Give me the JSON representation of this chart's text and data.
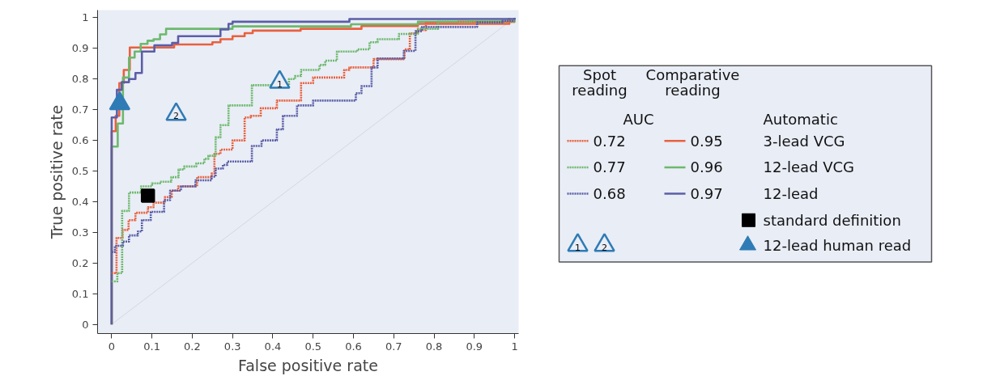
{
  "chart_data": {
    "type": "step",
    "xlabel": "False positive rate",
    "ylabel": "True positive rate",
    "xlim": [
      -0.035,
      1.01
    ],
    "ylim": [
      -0.03,
      1.025
    ],
    "xticks": [
      0,
      0.1,
      0.2,
      0.3,
      0.4,
      0.5,
      0.6,
      0.7,
      0.8,
      0.9,
      1
    ],
    "yticks": [
      0,
      0.1,
      0.2,
      0.3,
      0.4,
      0.5,
      0.6,
      0.7,
      0.8,
      0.9,
      1
    ],
    "grid": false,
    "legend": "right",
    "annotations": [
      "Spot\nreading",
      "Comparative\nreading",
      "AUC",
      "Automatic",
      "3-lead VCG",
      "12-lead VCG",
      "12-lead",
      {
        "text": "1",
        "x": 0.417,
        "y": 0.79
      },
      {
        "text": "2",
        "x": 0.16,
        "y": 0.685
      }
    ],
    "series": [
      {
        "type": "line",
        "color": "#d3d7de",
        "x": [
          0,
          1
        ],
        "values": [
          0,
          1
        ]
      },
      {
        "name": "0.72",
        "color": "#e8613f",
        "line_style": "dotted",
        "x": [
          0,
          0.012,
          0.027,
          0.042,
          0.059,
          0.09,
          0.104,
          0.132,
          0.149,
          0.165,
          0.212,
          0.248,
          0.255,
          0.27,
          0.3,
          0.33,
          0.345,
          0.37,
          0.41,
          0.47,
          0.47,
          0.5,
          0.577,
          0.59,
          0.65,
          0.727,
          0.74,
          0.76,
          0.78,
          0.86,
          1.0
        ],
        "values": [
          0.167,
          0.282,
          0.308,
          0.34,
          0.364,
          0.382,
          0.397,
          0.415,
          0.436,
          0.45,
          0.48,
          0.492,
          0.556,
          0.57,
          0.6,
          0.675,
          0.68,
          0.705,
          0.73,
          0.744,
          0.787,
          0.805,
          0.83,
          0.838,
          0.865,
          0.897,
          0.949,
          0.96,
          0.983,
          0.987,
          0.987
        ]
      },
      {
        "name": "0.77",
        "color": "#6cb96c",
        "line_style": "dotted",
        "x": [
          0,
          0.014,
          0.026,
          0.043,
          0.073,
          0.1,
          0.12,
          0.148,
          0.166,
          0.18,
          0.21,
          0.23,
          0.24,
          0.258,
          0.27,
          0.29,
          0.348,
          0.44,
          0.455,
          0.47,
          0.516,
          0.53,
          0.559,
          0.61,
          0.64,
          0.66,
          0.713,
          0.76,
          0.81,
          0.89,
          1.0
        ],
        "values": [
          0.14,
          0.167,
          0.37,
          0.43,
          0.45,
          0.46,
          0.465,
          0.48,
          0.505,
          0.515,
          0.525,
          0.54,
          0.55,
          0.61,
          0.65,
          0.714,
          0.78,
          0.8,
          0.81,
          0.83,
          0.846,
          0.86,
          0.89,
          0.897,
          0.92,
          0.93,
          0.947,
          0.964,
          0.987,
          0.99,
          0.99
        ]
      },
      {
        "name": "0.68",
        "color": "#5b5ea6",
        "line_style": "dotted",
        "x": [
          0,
          0.008,
          0.028,
          0.043,
          0.065,
          0.075,
          0.097,
          0.13,
          0.145,
          0.172,
          0.208,
          0.248,
          0.258,
          0.276,
          0.287,
          0.348,
          0.372,
          0.41,
          0.425,
          0.46,
          0.5,
          0.606,
          0.62,
          0.645,
          0.66,
          0.725,
          0.754,
          0.77,
          0.907,
          0.97,
          1.0
        ],
        "values": [
          0.236,
          0.256,
          0.27,
          0.29,
          0.303,
          0.34,
          0.367,
          0.405,
          0.436,
          0.45,
          0.47,
          0.482,
          0.508,
          0.52,
          0.531,
          0.582,
          0.6,
          0.636,
          0.68,
          0.714,
          0.73,
          0.754,
          0.777,
          0.838,
          0.867,
          0.892,
          0.956,
          0.97,
          0.985,
          0.99,
          0.99
        ]
      },
      {
        "name": "0.95",
        "color": "#e8613f",
        "line_style": "solid",
        "x": [
          0,
          0,
          0.01,
          0.019,
          0.03,
          0.045,
          0.155,
          0.25,
          0.27,
          0.3,
          0.33,
          0.35,
          0.469,
          0.62,
          0.76,
          0.987,
          0.987
        ],
        "values": [
          0,
          0.63,
          0.68,
          0.787,
          0.83,
          0.903,
          0.913,
          0.92,
          0.93,
          0.94,
          0.95,
          0.958,
          0.964,
          0.973,
          0.98,
          0.98,
          1
        ]
      },
      {
        "name": "0.96",
        "color": "#6cb96c",
        "line_style": "solid",
        "x": [
          0,
          0,
          0.015,
          0.028,
          0.043,
          0.057,
          0.072,
          0.089,
          0.104,
          0.12,
          0.135,
          0.3,
          0.594,
          0.76,
          1.0,
          1.0
        ],
        "values": [
          0,
          0.58,
          0.655,
          0.805,
          0.87,
          0.89,
          0.915,
          0.925,
          0.93,
          0.946,
          0.964,
          0.972,
          0.979,
          0.987,
          0.987,
          1
        ]
      },
      {
        "name": "0.97",
        "color": "#5b5ea6",
        "line_style": "solid",
        "x": [
          0,
          0,
          0.013,
          0.025,
          0.043,
          0.059,
          0.075,
          0.106,
          0.15,
          0.165,
          0.27,
          0.29,
          0.3,
          0.59,
          1.0
        ],
        "values": [
          0,
          0.675,
          0.765,
          0.79,
          0.8,
          0.82,
          0.89,
          0.91,
          0.918,
          0.94,
          0.962,
          0.98,
          0.987,
          0.996,
          1
        ]
      },
      {
        "name": "standard definition",
        "type": "scatter",
        "marker": "square",
        "color": "#000000",
        "x": [
          0.09
        ],
        "values": [
          0.42
        ]
      },
      {
        "type": "scatter",
        "marker": "triangle",
        "color": "#2f7bb5",
        "x": [
          0.417,
          0.16
        ],
        "values": [
          0.79,
          0.685
        ]
      },
      {
        "name": "12-lead human read",
        "type": "scatter",
        "marker": "triangle",
        "color": "#2f7bb5",
        "x": [
          0.02
        ],
        "values": [
          0.72
        ]
      }
    ]
  }
}
